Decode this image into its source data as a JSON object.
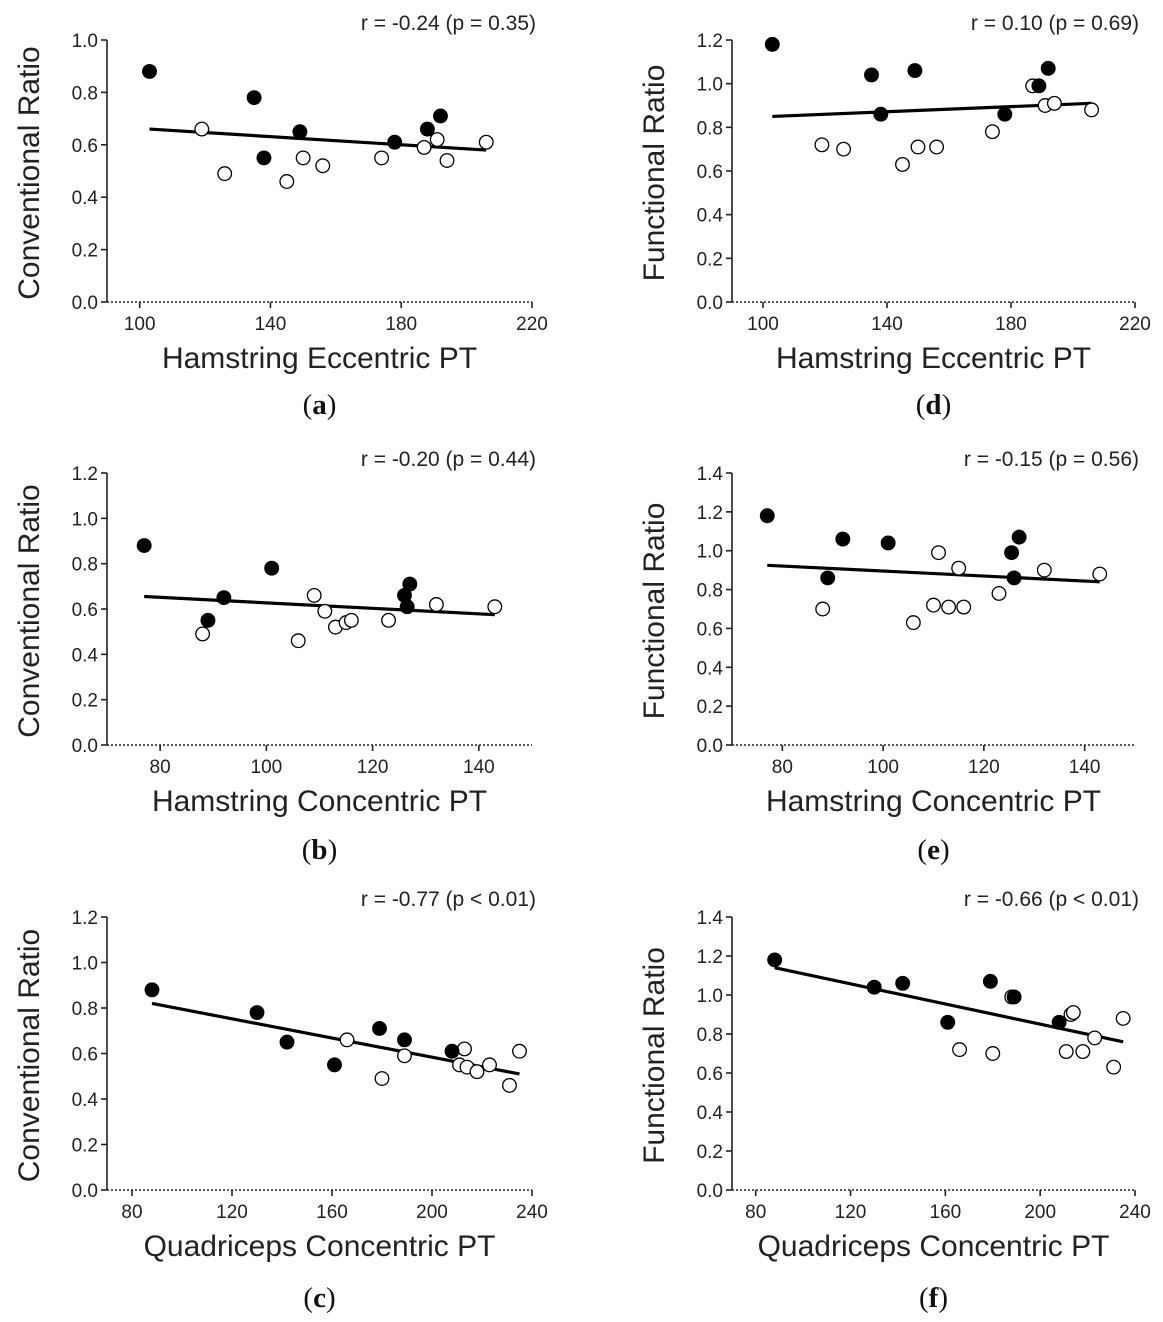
{
  "chart_data": [
    {
      "type": "scatter",
      "panel_label_parts": [
        "(",
        "a",
        ")"
      ],
      "stat": "r = -0.24 (p = 0.35)",
      "xlabel": "Hamstring Eccentric PT",
      "ylabel": "Conventional Ratio",
      "xlim": [
        90,
        220
      ],
      "ylim": [
        0,
        1.0
      ],
      "xticks": [
        100,
        140,
        180,
        220
      ],
      "yticks": [
        0.0,
        0.2,
        0.4,
        0.6,
        0.8,
        1.0
      ],
      "tick_decimals": 1,
      "grid": false,
      "fit_line": [
        [
          103,
          0.66
        ],
        [
          206,
          0.58
        ]
      ],
      "series": [
        {
          "fill": "filled",
          "points": [
            [
              103,
              0.88
            ],
            [
              135,
              0.78
            ],
            [
              138,
              0.55
            ],
            [
              149,
              0.65
            ],
            [
              178,
              0.61
            ],
            [
              188,
              0.66
            ],
            [
              192,
              0.71
            ]
          ]
        },
        {
          "fill": "open",
          "points": [
            [
              119,
              0.66
            ],
            [
              126,
              0.49
            ],
            [
              145,
              0.46
            ],
            [
              150,
              0.55
            ],
            [
              156,
              0.52
            ],
            [
              174,
              0.55
            ],
            [
              187,
              0.59
            ],
            [
              191,
              0.62
            ],
            [
              194,
              0.54
            ],
            [
              206,
              0.61
            ]
          ]
        }
      ]
    },
    {
      "type": "scatter",
      "panel_label_parts": [
        "(",
        "d",
        ")"
      ],
      "stat": "r = 0.10 (p = 0.69)",
      "xlabel": "Hamstring Eccentric PT",
      "ylabel": "Functional Ratio",
      "xlim": [
        90,
        220
      ],
      "ylim": [
        0,
        1.2
      ],
      "xticks": [
        100,
        140,
        180,
        220
      ],
      "yticks": [
        0.0,
        0.2,
        0.4,
        0.6,
        0.8,
        1.0,
        1.2
      ],
      "tick_decimals": 1,
      "grid": false,
      "fit_line": [
        [
          103,
          0.85
        ],
        [
          206,
          0.91
        ]
      ],
      "series": [
        {
          "fill": "filled",
          "points": [
            [
              103,
              1.18
            ],
            [
              135,
              1.04
            ],
            [
              138,
              0.86
            ],
            [
              149,
              1.06
            ],
            [
              178,
              0.86
            ],
            [
              189,
              0.99
            ],
            [
              192,
              1.07
            ]
          ]
        },
        {
          "fill": "open",
          "points": [
            [
              119,
              0.72
            ],
            [
              126,
              0.7
            ],
            [
              145,
              0.63
            ],
            [
              150,
              0.71
            ],
            [
              156,
              0.71
            ],
            [
              174,
              0.78
            ],
            [
              187,
              0.99
            ],
            [
              191,
              0.9
            ],
            [
              194,
              0.91
            ],
            [
              206,
              0.88
            ]
          ]
        }
      ]
    },
    {
      "type": "scatter",
      "panel_label_parts": [
        "(",
        "b",
        ")"
      ],
      "stat": "r = -0.20 (p = 0.44)",
      "xlabel": "Hamstring Concentric PT",
      "ylabel": "Conventional Ratio",
      "xlim": [
        70,
        150
      ],
      "ylim": [
        0,
        1.2
      ],
      "xticks": [
        80,
        100,
        120,
        140
      ],
      "yticks": [
        0.0,
        0.2,
        0.4,
        0.6,
        0.8,
        1.0,
        1.2
      ],
      "tick_decimals": 1,
      "grid": false,
      "fit_line": [
        [
          77,
          0.655
        ],
        [
          143,
          0.575
        ]
      ],
      "series": [
        {
          "fill": "filled",
          "points": [
            [
              77,
              0.88
            ],
            [
              89,
              0.55
            ],
            [
              92,
              0.65
            ],
            [
              101,
              0.78
            ],
            [
              126,
              0.66
            ],
            [
              126.5,
              0.61
            ],
            [
              127,
              0.71
            ]
          ]
        },
        {
          "fill": "open",
          "points": [
            [
              88,
              0.49
            ],
            [
              106,
              0.46
            ],
            [
              109,
              0.66
            ],
            [
              111,
              0.59
            ],
            [
              113,
              0.52
            ],
            [
              115,
              0.54
            ],
            [
              116,
              0.55
            ],
            [
              123,
              0.55
            ],
            [
              132,
              0.62
            ],
            [
              143,
              0.61
            ]
          ]
        }
      ]
    },
    {
      "type": "scatter",
      "panel_label_parts": [
        "(",
        "e",
        ")"
      ],
      "stat": "r = -0.15 (p = 0.56)",
      "xlabel": "Hamstring Concentric PT",
      "ylabel": "Functional Ratio",
      "xlim": [
        70,
        150
      ],
      "ylim": [
        0,
        1.4
      ],
      "xticks": [
        80,
        100,
        120,
        140
      ],
      "yticks": [
        0.0,
        0.2,
        0.4,
        0.6,
        0.8,
        1.0,
        1.2,
        1.4
      ],
      "tick_decimals": 1,
      "grid": false,
      "fit_line": [
        [
          77,
          0.925
        ],
        [
          143,
          0.84
        ]
      ],
      "series": [
        {
          "fill": "filled",
          "points": [
            [
              77,
              1.18
            ],
            [
              89,
              0.86
            ],
            [
              92,
              1.06
            ],
            [
              101,
              1.04
            ],
            [
              125.5,
              0.99
            ],
            [
              126,
              0.86
            ],
            [
              127,
              1.07
            ]
          ]
        },
        {
          "fill": "open",
          "points": [
            [
              88,
              0.7
            ],
            [
              106,
              0.63
            ],
            [
              110,
              0.72
            ],
            [
              111,
              0.99
            ],
            [
              113,
              0.71
            ],
            [
              115,
              0.91
            ],
            [
              116,
              0.71
            ],
            [
              123,
              0.78
            ],
            [
              132,
              0.9
            ],
            [
              143,
              0.88
            ]
          ]
        }
      ]
    },
    {
      "type": "scatter",
      "panel_label_parts": [
        "(",
        "c",
        ")"
      ],
      "stat": "r = -0.77 (p < 0.01)",
      "xlabel": "Quadriceps Concentric PT",
      "ylabel": "Conventional Ratio",
      "xlim": [
        70,
        240
      ],
      "ylim": [
        0,
        1.2
      ],
      "xticks": [
        80,
        120,
        160,
        200,
        240
      ],
      "yticks": [
        0.0,
        0.2,
        0.4,
        0.6,
        0.8,
        1.0,
        1.2
      ],
      "tick_decimals": 1,
      "grid": false,
      "fit_line": [
        [
          88,
          0.82
        ],
        [
          235,
          0.51
        ]
      ],
      "series": [
        {
          "fill": "filled",
          "points": [
            [
              88,
              0.88
            ],
            [
              130,
              0.78
            ],
            [
              142,
              0.65
            ],
            [
              161,
              0.55
            ],
            [
              179,
              0.71
            ],
            [
              189,
              0.66
            ],
            [
              208,
              0.61
            ]
          ]
        },
        {
          "fill": "open",
          "points": [
            [
              166,
              0.66
            ],
            [
              180,
              0.49
            ],
            [
              189,
              0.59
            ],
            [
              211,
              0.55
            ],
            [
              213,
              0.62
            ],
            [
              214,
              0.54
            ],
            [
              218,
              0.52
            ],
            [
              223,
              0.55
            ],
            [
              231,
              0.46
            ],
            [
              235,
              0.61
            ]
          ]
        }
      ]
    },
    {
      "type": "scatter",
      "panel_label_parts": [
        "(",
        "f",
        ")"
      ],
      "stat": "r = -0.66 (p < 0.01)",
      "xlabel": "Quadriceps Concentric PT",
      "ylabel": "Functional Ratio",
      "xlim": [
        70,
        240
      ],
      "ylim": [
        0,
        1.4
      ],
      "xticks": [
        80,
        120,
        160,
        200,
        240
      ],
      "yticks": [
        0.0,
        0.2,
        0.4,
        0.6,
        0.8,
        1.0,
        1.2,
        1.4
      ],
      "tick_decimals": 1,
      "grid": false,
      "fit_line": [
        [
          88,
          1.14
        ],
        [
          235,
          0.76
        ]
      ],
      "series": [
        {
          "fill": "filled",
          "points": [
            [
              88,
              1.18
            ],
            [
              130,
              1.04
            ],
            [
              142,
              1.06
            ],
            [
              161,
              0.86
            ],
            [
              179,
              1.07
            ],
            [
              189,
              0.99
            ],
            [
              208,
              0.86
            ]
          ]
        },
        {
          "fill": "open",
          "points": [
            [
              166,
              0.72
            ],
            [
              180,
              0.7
            ],
            [
              188,
              0.99
            ],
            [
              211,
              0.71
            ],
            [
              213,
              0.9
            ],
            [
              214,
              0.91
            ],
            [
              218,
              0.71
            ],
            [
              223,
              0.78
            ],
            [
              231,
              0.63
            ],
            [
              235,
              0.88
            ]
          ]
        }
      ]
    }
  ]
}
